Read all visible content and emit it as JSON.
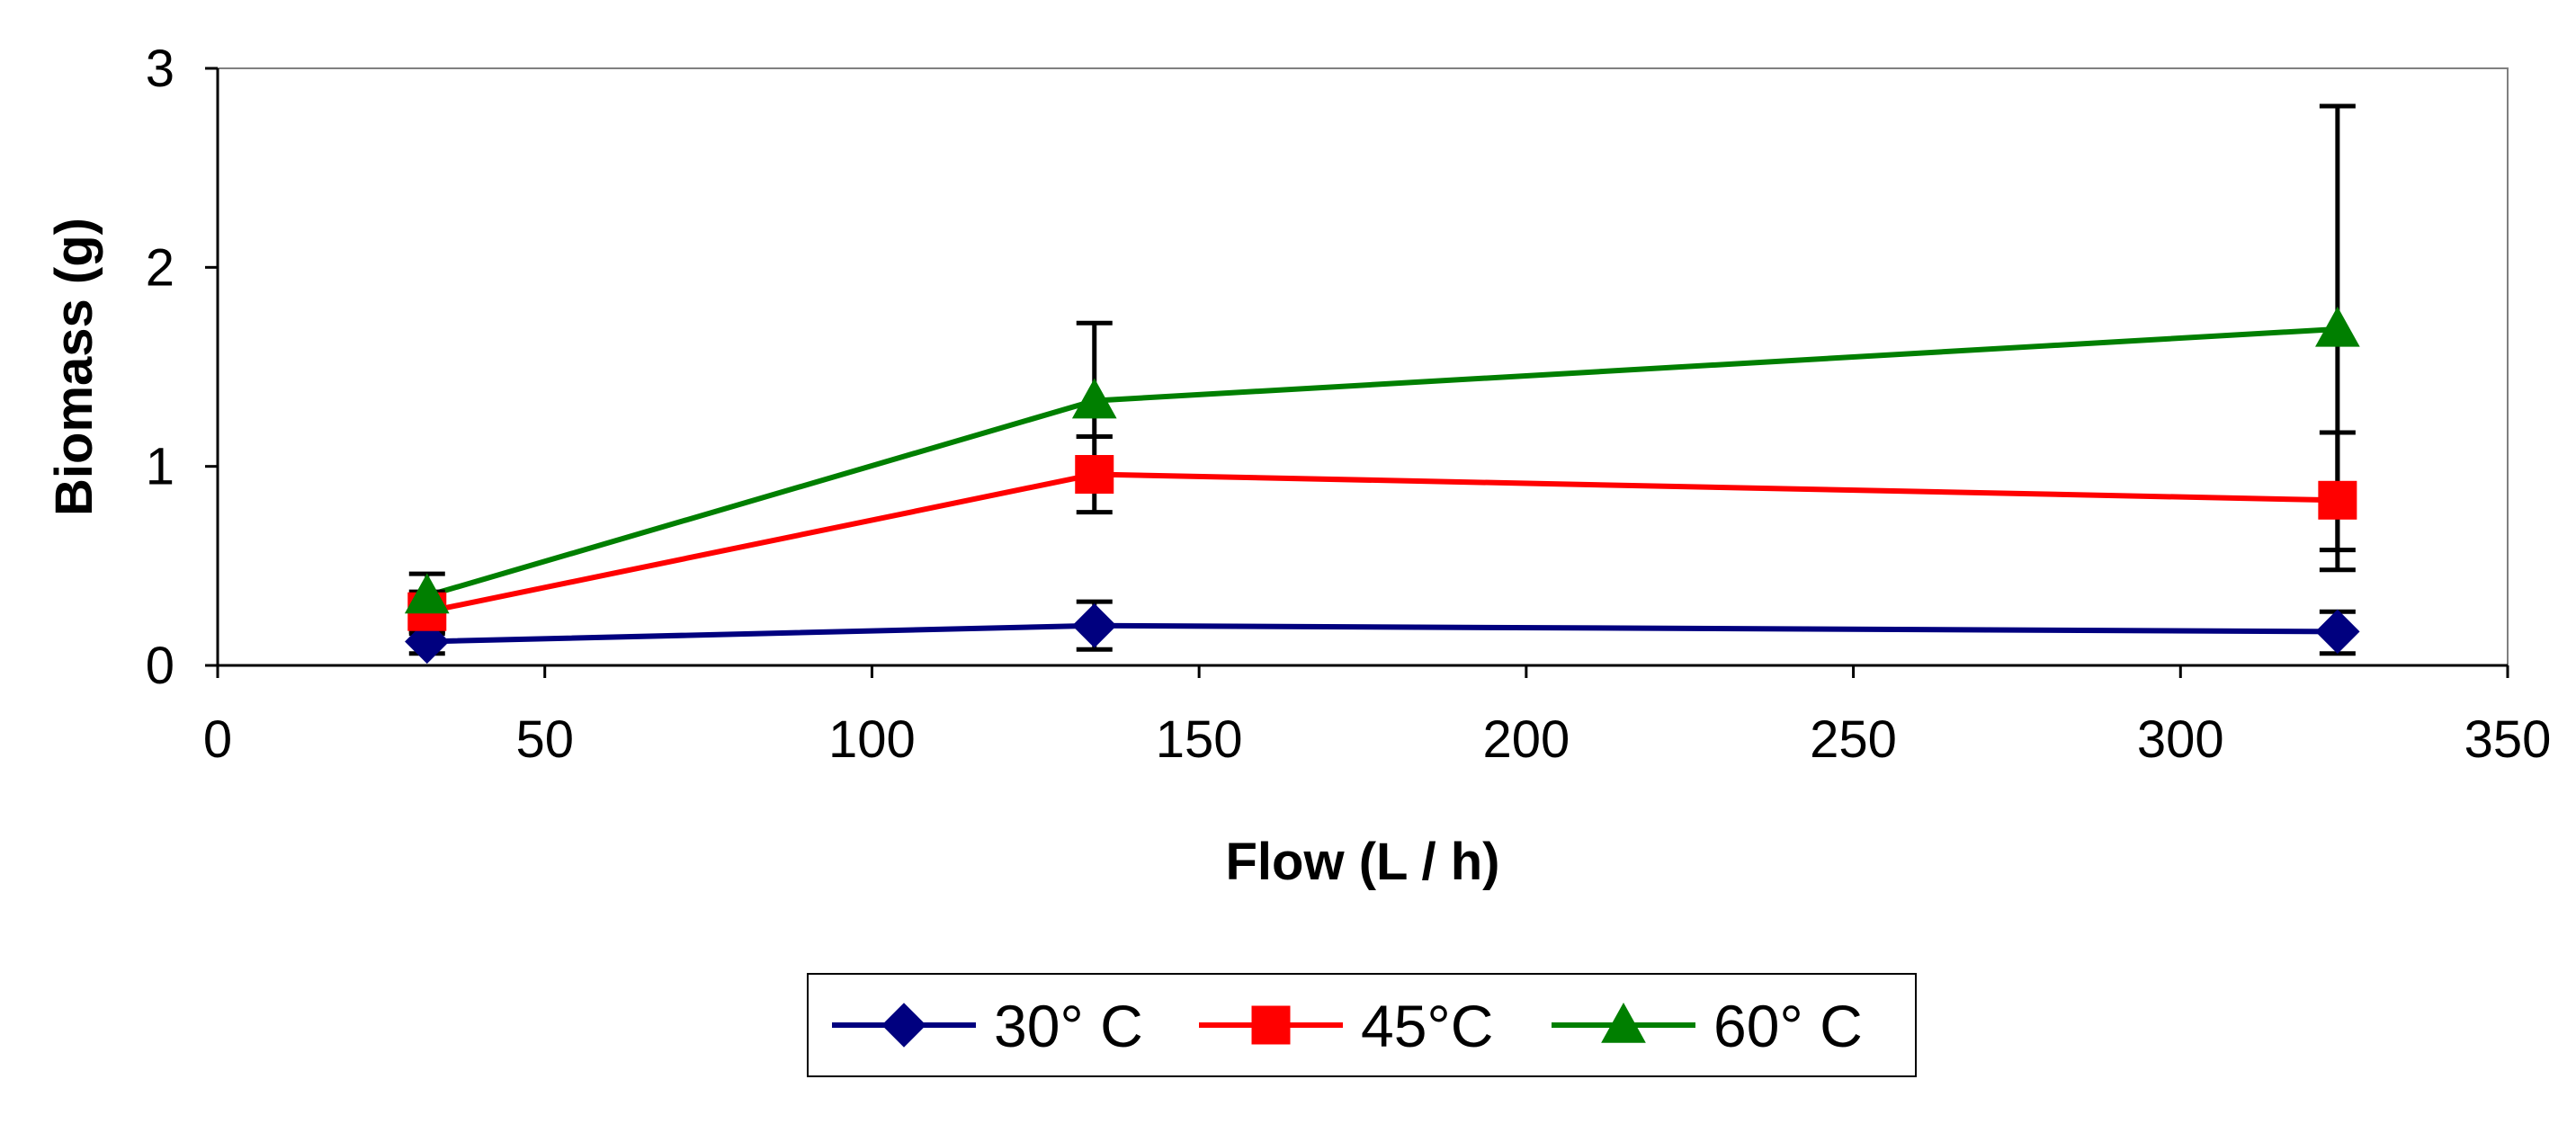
{
  "chart_data": {
    "type": "line",
    "title": "",
    "xlabel": "Flow (L / h)",
    "ylabel": "Biomass (g)",
    "xlim": [
      0,
      350
    ],
    "ylim": [
      0,
      3
    ],
    "xticks": [
      0,
      50,
      100,
      150,
      200,
      250,
      300,
      350
    ],
    "yticks": [
      0,
      1,
      2,
      3
    ],
    "grid": false,
    "legend_position": "bottom",
    "x": [
      32,
      134,
      324
    ],
    "series": [
      {
        "name": "30° C",
        "color": "#00007f",
        "marker": "diamond",
        "values": [
          0.12,
          0.2,
          0.17
        ],
        "err_low": [
          0.06,
          0.12,
          0.11
        ],
        "err_high": [
          0.04,
          0.12,
          0.1
        ]
      },
      {
        "name": "45°C",
        "color": "#ff0000",
        "marker": "square",
        "values": [
          0.27,
          0.96,
          0.83
        ],
        "err_low": [
          0.1,
          0.19,
          0.35
        ],
        "err_high": [
          0.1,
          0.19,
          0.34
        ]
      },
      {
        "name": "60° C",
        "color": "#007f00",
        "marker": "triangle",
        "values": [
          0.35,
          1.33,
          1.69
        ],
        "err_low": [
          0.1,
          0.18,
          1.11
        ],
        "err_high": [
          0.11,
          0.39,
          1.12
        ]
      }
    ]
  }
}
